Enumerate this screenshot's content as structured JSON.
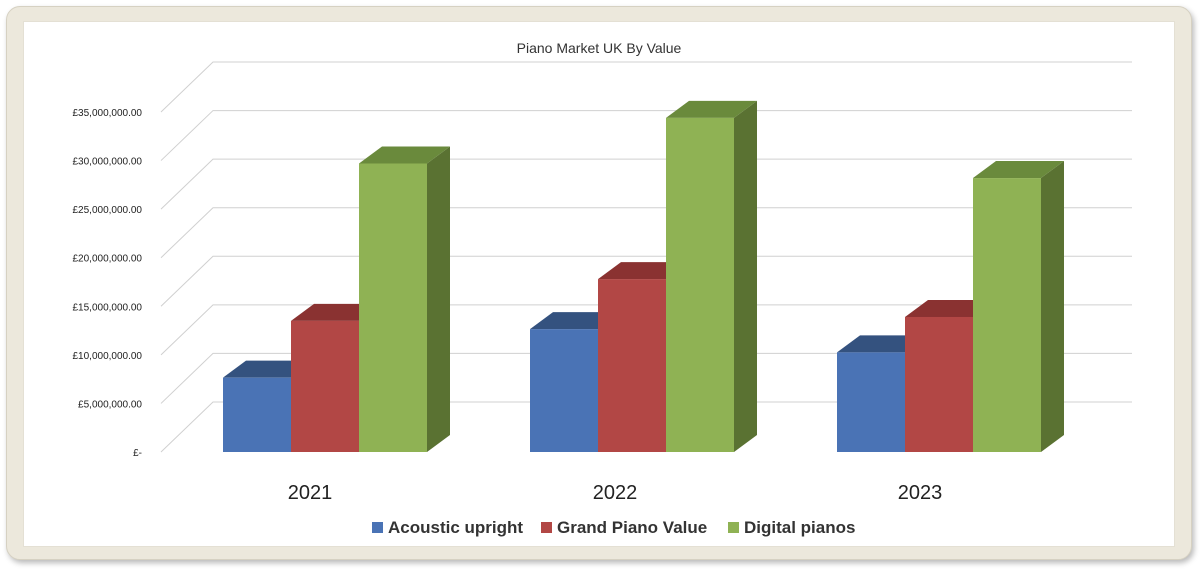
{
  "chart_data": {
    "type": "bar",
    "title": "Piano Market UK By Value",
    "xlabel": "",
    "ylabel": "",
    "categories": [
      "2021",
      "2022",
      "2023"
    ],
    "series": [
      {
        "name": "Acoustic upright",
        "values": [
          7650000,
          12650000,
          10250000
        ],
        "color": "#4a73b5",
        "top_color": "#34527f",
        "side_color": "#2f4a73"
      },
      {
        "name": "Grand Piano Value",
        "values": [
          13500000,
          17800000,
          13900000
        ],
        "color": "#b24745",
        "top_color": "#8a3231",
        "side_color": "#7f2d2c"
      },
      {
        "name": "Digital pianos",
        "values": [
          29700000,
          34400000,
          28200000
        ],
        "color": "#8fb254",
        "top_color": "#6a8a3c",
        "side_color": "#5a7232"
      }
    ],
    "ylim": [
      0,
      35000000
    ],
    "yticks": [
      0,
      5000000,
      10000000,
      15000000,
      20000000,
      25000000,
      30000000,
      35000000
    ],
    "ytick_labels": [
      "£-",
      "£5,000,000.00",
      "£10,000,000.00",
      "£15,000,000.00",
      "£20,000,000.00",
      "£25,000,000.00",
      "£30,000,000.00",
      "£35,000,000.00"
    ],
    "grid": true,
    "legend_position": "bottom",
    "style": "3d-clustered-column"
  }
}
